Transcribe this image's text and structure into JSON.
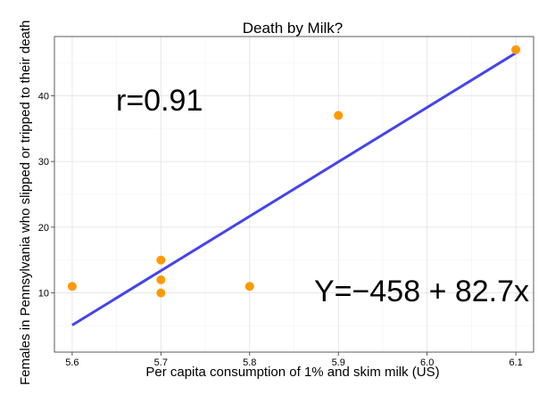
{
  "chart_data": {
    "type": "scatter",
    "title": "Death by Milk?",
    "xlabel": "Per capita consumption of 1% and skim milk (US)",
    "ylabel": "Females in Pennsylvania who slipped or tripped to their death",
    "xlim": [
      5.58,
      6.12
    ],
    "ylim": [
      1,
      49
    ],
    "x_ticks": [
      "5.6",
      "5.7",
      "5.8",
      "5.9",
      "6.0",
      "6.1"
    ],
    "y_ticks": [
      "10",
      "20",
      "30",
      "40"
    ],
    "grid": true,
    "points": [
      {
        "x": 5.6,
        "y": 11
      },
      {
        "x": 5.7,
        "y": 15
      },
      {
        "x": 5.7,
        "y": 12
      },
      {
        "x": 5.7,
        "y": 10
      },
      {
        "x": 5.8,
        "y": 11
      },
      {
        "x": 5.9,
        "y": 37
      },
      {
        "x": 6.1,
        "y": 47
      }
    ],
    "point_color": "#FF9900",
    "fit_line": {
      "x_start": 5.6,
      "y_start": 5.1,
      "x_end": 6.1,
      "y_end": 46.5,
      "color": "#4444EE"
    },
    "annotations": [
      "r=0.91",
      "Y=−458 + 82.7x"
    ]
  }
}
